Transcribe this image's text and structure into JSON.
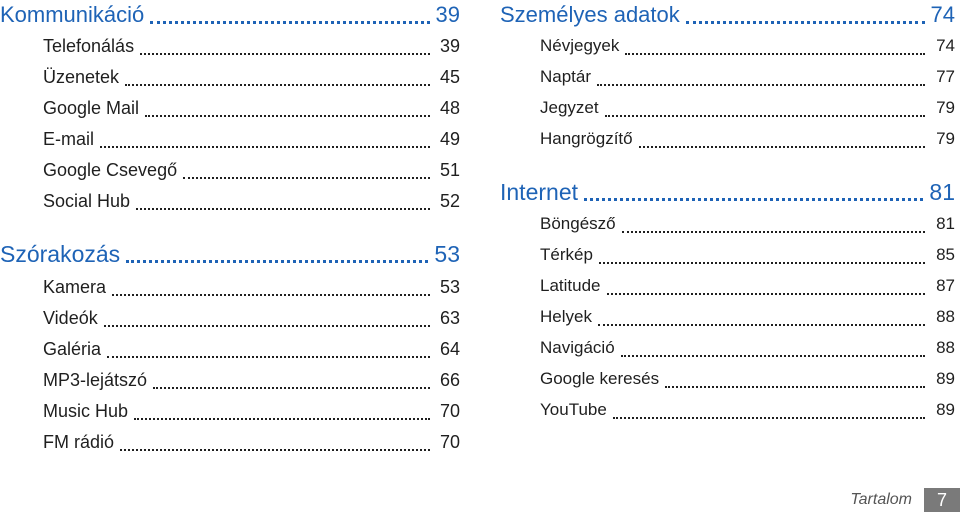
{
  "toc_left": [
    {
      "title": "Kommunikáció",
      "page": "39",
      "items": [
        {
          "label": "Telefonálás",
          "page": "39"
        },
        {
          "label": "Üzenetek",
          "page": "45"
        },
        {
          "label": "Google Mail",
          "page": "48"
        },
        {
          "label": "E-mail",
          "page": "49"
        },
        {
          "label": "Google Csevegő",
          "page": "51"
        },
        {
          "label": "Social Hub",
          "page": "52"
        }
      ]
    },
    {
      "title": "Szórakozás",
      "page": "53",
      "items": [
        {
          "label": "Kamera",
          "page": "53"
        },
        {
          "label": "Videók",
          "page": "63"
        },
        {
          "label": "Galéria",
          "page": "64"
        },
        {
          "label": "MP3-lejátszó",
          "page": "66"
        },
        {
          "label": "Music Hub",
          "page": "70"
        },
        {
          "label": "FM rádió",
          "page": "70"
        }
      ]
    }
  ],
  "toc_right": [
    {
      "title": "Személyes adatok",
      "page": "74",
      "items": [
        {
          "label": "Névjegyek",
          "page": "74"
        },
        {
          "label": "Naptár",
          "page": "77"
        },
        {
          "label": "Jegyzet",
          "page": "79"
        },
        {
          "label": "Hangrögzítő",
          "page": "79"
        }
      ]
    },
    {
      "title": "Internet",
      "page": "81",
      "items": [
        {
          "label": "Böngésző",
          "page": "81"
        },
        {
          "label": "Térkép",
          "page": "85"
        },
        {
          "label": "Latitude",
          "page": "87"
        },
        {
          "label": "Helyek",
          "page": "88"
        },
        {
          "label": "Navigáció",
          "page": "88"
        },
        {
          "label": "Google keresés",
          "page": "89"
        },
        {
          "label": "YouTube",
          "page": "89"
        }
      ]
    }
  ],
  "footer": {
    "label": "Tartalom",
    "page_number": "7"
  },
  "colors": {
    "heading": "#1e63b6",
    "text": "#1f1f1f",
    "page_box": "#7a7a7a"
  }
}
